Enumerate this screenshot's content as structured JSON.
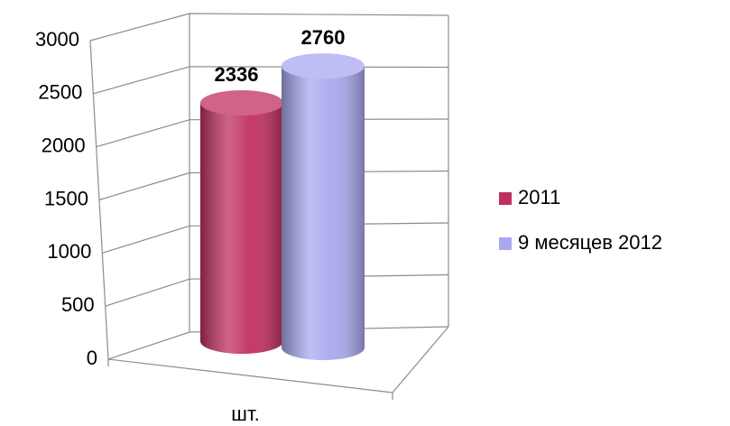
{
  "chart_data": {
    "type": "bar3d",
    "categories": [
      "шт."
    ],
    "series": [
      {
        "name": "2011",
        "color": "#c0305e",
        "values": [
          2336
        ]
      },
      {
        "name": "9 месяцев 2012",
        "color": "#a9a9f0",
        "values": [
          2760
        ]
      }
    ],
    "ylim": [
      0,
      3000
    ],
    "yticks": [
      0,
      500,
      1000,
      1500,
      2000,
      2500,
      3000
    ],
    "grid": true,
    "legend": "right"
  }
}
